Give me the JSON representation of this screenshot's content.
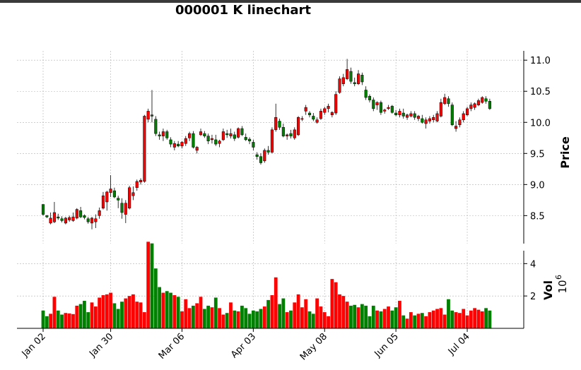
{
  "chart_data": {
    "type": "candlestick",
    "title": "000001 K linechart",
    "price_axis": {
      "label": "Price",
      "ticks": [
        8.5,
        9.0,
        9.5,
        10.0,
        10.5,
        11.0
      ],
      "ylim": [
        8.05,
        11.15
      ]
    },
    "volume_axis": {
      "label": "Vol",
      "multiplier": "10^6",
      "ticks": [
        2,
        4
      ],
      "ylim": [
        0,
        4.8
      ]
    },
    "x_tick_labels": [
      {
        "label": "Jan 02",
        "index": 0
      },
      {
        "label": "Jan 30",
        "index": 18
      },
      {
        "label": "Mar 06",
        "index": 37
      },
      {
        "label": "Apr 03",
        "index": 56
      },
      {
        "label": "May 08",
        "index": 75
      },
      {
        "label": "Jun 05",
        "index": 94
      },
      {
        "label": "Jul 04",
        "index": 113
      }
    ],
    "grid": true,
    "colors": {
      "up": "#ff0000",
      "down": "#008000",
      "wick": "#000000",
      "edge": "#000000",
      "grid": "#b0b0b0"
    },
    "series": {
      "ohlc": [
        [
          8.68,
          8.68,
          8.5,
          8.52
        ],
        [
          8.5,
          8.51,
          8.46,
          8.48
        ],
        [
          8.38,
          8.55,
          8.36,
          8.46
        ],
        [
          8.4,
          8.72,
          8.38,
          8.55
        ],
        [
          8.48,
          8.53,
          8.43,
          8.46
        ],
        [
          8.45,
          8.49,
          8.39,
          8.42
        ],
        [
          8.38,
          8.48,
          8.36,
          8.46
        ],
        [
          8.43,
          8.5,
          8.4,
          8.47
        ],
        [
          8.42,
          8.55,
          8.4,
          8.48
        ],
        [
          8.46,
          8.62,
          8.44,
          8.6
        ],
        [
          8.58,
          8.64,
          8.46,
          8.48
        ],
        [
          8.5,
          8.52,
          8.44,
          8.47
        ],
        [
          8.45,
          8.48,
          8.37,
          8.4
        ],
        [
          8.38,
          8.48,
          8.28,
          8.46
        ],
        [
          8.4,
          8.52,
          8.3,
          8.45
        ],
        [
          8.5,
          8.63,
          8.45,
          8.58
        ],
        [
          8.62,
          8.88,
          8.6,
          8.82
        ],
        [
          8.72,
          8.9,
          8.58,
          8.88
        ],
        [
          8.87,
          9.15,
          8.8,
          8.93
        ],
        [
          8.9,
          8.95,
          8.78,
          8.8
        ],
        [
          8.78,
          8.82,
          8.62,
          8.75
        ],
        [
          8.7,
          8.78,
          8.45,
          8.55
        ],
        [
          8.52,
          8.75,
          8.38,
          8.7
        ],
        [
          8.62,
          8.98,
          8.6,
          8.95
        ],
        [
          8.82,
          8.97,
          8.75,
          8.87
        ],
        [
          8.95,
          9.08,
          8.9,
          9.05
        ],
        [
          9.04,
          9.1,
          9.0,
          9.07
        ],
        [
          9.05,
          10.12,
          9.03,
          10.1
        ],
        [
          10.05,
          10.22,
          10.0,
          10.18
        ],
        [
          10.12,
          10.52,
          10.0,
          10.1
        ],
        [
          10.05,
          10.1,
          9.78,
          9.82
        ],
        [
          9.8,
          9.85,
          9.72,
          9.78
        ],
        [
          9.78,
          9.9,
          9.7,
          9.85
        ],
        [
          9.85,
          9.88,
          9.72,
          9.75
        ],
        [
          9.72,
          9.76,
          9.6,
          9.65
        ],
        [
          9.6,
          9.7,
          9.55,
          9.66
        ],
        [
          9.65,
          9.7,
          9.6,
          9.62
        ],
        [
          9.62,
          9.7,
          9.58,
          9.68
        ],
        [
          9.66,
          9.78,
          9.62,
          9.74
        ],
        [
          9.75,
          9.85,
          9.7,
          9.82
        ],
        [
          9.82,
          9.86,
          9.58,
          9.6
        ],
        [
          9.55,
          9.62,
          9.5,
          9.6
        ],
        [
          9.8,
          9.9,
          9.78,
          9.85
        ],
        [
          9.82,
          9.86,
          9.75,
          9.78
        ],
        [
          9.78,
          9.82,
          9.65,
          9.7
        ],
        [
          9.72,
          9.8,
          9.66,
          9.74
        ],
        [
          9.72,
          9.8,
          9.62,
          9.65
        ],
        [
          9.66,
          9.72,
          9.6,
          9.7
        ],
        [
          9.72,
          9.9,
          9.7,
          9.85
        ],
        [
          9.82,
          9.88,
          9.75,
          9.8
        ],
        [
          9.78,
          9.9,
          9.74,
          9.82
        ],
        [
          9.8,
          9.85,
          9.7,
          9.74
        ],
        [
          9.76,
          9.92,
          9.74,
          9.9
        ],
        [
          9.9,
          9.94,
          9.78,
          9.8
        ],
        [
          9.76,
          9.82,
          9.7,
          9.72
        ],
        [
          9.73,
          9.76,
          9.65,
          9.7
        ],
        [
          9.68,
          9.72,
          9.55,
          9.6
        ],
        [
          9.48,
          9.52,
          9.4,
          9.45
        ],
        [
          9.45,
          9.5,
          9.32,
          9.35
        ],
        [
          9.38,
          9.58,
          9.35,
          9.55
        ],
        [
          9.55,
          9.62,
          9.48,
          9.52
        ],
        [
          9.52,
          9.92,
          9.5,
          9.88
        ],
        [
          9.88,
          10.3,
          9.85,
          10.08
        ],
        [
          10.02,
          10.06,
          9.88,
          9.92
        ],
        [
          9.92,
          9.98,
          9.76,
          9.78
        ],
        [
          9.78,
          9.82,
          9.72,
          9.8
        ],
        [
          9.82,
          9.88,
          9.74,
          9.78
        ],
        [
          9.75,
          9.92,
          9.72,
          9.88
        ],
        [
          9.8,
          10.1,
          9.78,
          10.08
        ],
        [
          10.05,
          10.1,
          10.02,
          10.06
        ],
        [
          10.18,
          10.28,
          10.12,
          10.24
        ],
        [
          10.15,
          10.18,
          10.08,
          10.12
        ],
        [
          10.1,
          10.15,
          10.02,
          10.05
        ],
        [
          10.0,
          10.08,
          9.98,
          10.04
        ],
        [
          10.06,
          10.22,
          10.04,
          10.18
        ],
        [
          10.16,
          10.25,
          10.12,
          10.22
        ],
        [
          10.22,
          10.3,
          10.16,
          10.26
        ],
        [
          10.12,
          10.18,
          10.08,
          10.16
        ],
        [
          10.15,
          10.5,
          10.12,
          10.45
        ],
        [
          10.48,
          10.74,
          10.46,
          10.7
        ],
        [
          10.62,
          10.78,
          10.58,
          10.72
        ],
        [
          10.7,
          11.02,
          10.68,
          10.85
        ],
        [
          10.82,
          10.88,
          10.62,
          10.66
        ],
        [
          10.64,
          10.72,
          10.58,
          10.62
        ],
        [
          10.62,
          10.84,
          10.6,
          10.78
        ],
        [
          10.76,
          10.8,
          10.6,
          10.65
        ],
        [
          10.52,
          10.58,
          10.36,
          10.4
        ],
        [
          10.42,
          10.45,
          10.32,
          10.36
        ],
        [
          10.36,
          10.4,
          10.18,
          10.22
        ],
        [
          10.28,
          10.34,
          10.2,
          10.32
        ],
        [
          10.32,
          10.35,
          10.12,
          10.16
        ],
        [
          10.18,
          10.22,
          10.14,
          10.2
        ],
        [
          10.22,
          10.28,
          10.2,
          10.24
        ],
        [
          10.26,
          10.28,
          10.14,
          10.16
        ],
        [
          10.15,
          10.2,
          10.1,
          10.12
        ],
        [
          10.12,
          10.22,
          10.08,
          10.18
        ],
        [
          10.15,
          10.22,
          10.06,
          10.1
        ],
        [
          10.08,
          10.14,
          10.04,
          10.12
        ],
        [
          10.1,
          10.18,
          10.08,
          10.14
        ],
        [
          10.14,
          10.18,
          10.04,
          10.08
        ],
        [
          10.06,
          10.12,
          10.02,
          10.1
        ],
        [
          10.06,
          10.12,
          9.98,
          10.0
        ],
        [
          9.98,
          10.08,
          9.9,
          10.04
        ],
        [
          10.02,
          10.1,
          9.98,
          10.06
        ],
        [
          10.04,
          10.12,
          10.0,
          10.08
        ],
        [
          10.02,
          10.18,
          10.0,
          10.14
        ],
        [
          10.1,
          10.38,
          10.08,
          10.32
        ],
        [
          10.3,
          10.46,
          10.28,
          10.4
        ],
        [
          10.38,
          10.42,
          10.25,
          10.3
        ],
        [
          10.28,
          10.32,
          9.94,
          9.96
        ],
        [
          9.9,
          10.02,
          9.85,
          9.94
        ],
        [
          9.96,
          10.08,
          9.92,
          10.04
        ],
        [
          10.04,
          10.18,
          10.0,
          10.14
        ],
        [
          10.12,
          10.25,
          10.1,
          10.22
        ],
        [
          10.22,
          10.32,
          10.18,
          10.28
        ],
        [
          10.24,
          10.32,
          10.2,
          10.3
        ],
        [
          10.28,
          10.38,
          10.26,
          10.35
        ],
        [
          10.32,
          10.42,
          10.3,
          10.4
        ],
        [
          10.38,
          10.42,
          10.3,
          10.34
        ],
        [
          10.34,
          10.38,
          10.2,
          10.22
        ]
      ],
      "volume": [
        1.1,
        0.75,
        0.9,
        1.95,
        1.1,
        0.85,
        0.95,
        0.92,
        0.88,
        1.4,
        1.5,
        1.7,
        1.0,
        1.6,
        1.35,
        1.9,
        2.05,
        2.1,
        2.2,
        1.55,
        1.2,
        1.65,
        1.85,
        2.0,
        2.1,
        1.65,
        1.6,
        1.0,
        5.35,
        5.25,
        3.7,
        2.55,
        2.2,
        2.3,
        2.2,
        2.05,
        1.95,
        1.05,
        1.8,
        1.25,
        1.4,
        1.55,
        1.95,
        1.2,
        1.4,
        1.3,
        1.9,
        1.25,
        0.85,
        0.95,
        1.6,
        1.1,
        1.05,
        1.4,
        1.25,
        0.9,
        1.1,
        1.05,
        1.2,
        1.35,
        1.75,
        2.05,
        3.15,
        1.5,
        1.85,
        1.0,
        1.1,
        1.6,
        2.1,
        1.3,
        1.8,
        1.05,
        0.9,
        1.85,
        1.35,
        1.0,
        0.75,
        3.05,
        2.85,
        2.1,
        2.0,
        1.65,
        1.4,
        1.45,
        1.3,
        1.5,
        1.4,
        0.75,
        1.4,
        1.1,
        1.05,
        1.2,
        1.35,
        1.1,
        1.3,
        1.7,
        0.8,
        0.6,
        1.0,
        0.8,
        0.9,
        0.95,
        0.75,
        1.0,
        1.1,
        1.2,
        1.25,
        0.85,
        1.8,
        1.1,
        1.0,
        0.95,
        1.2,
        0.8,
        1.1,
        1.25,
        1.15,
        1.05,
        1.25,
        1.1
      ]
    }
  }
}
